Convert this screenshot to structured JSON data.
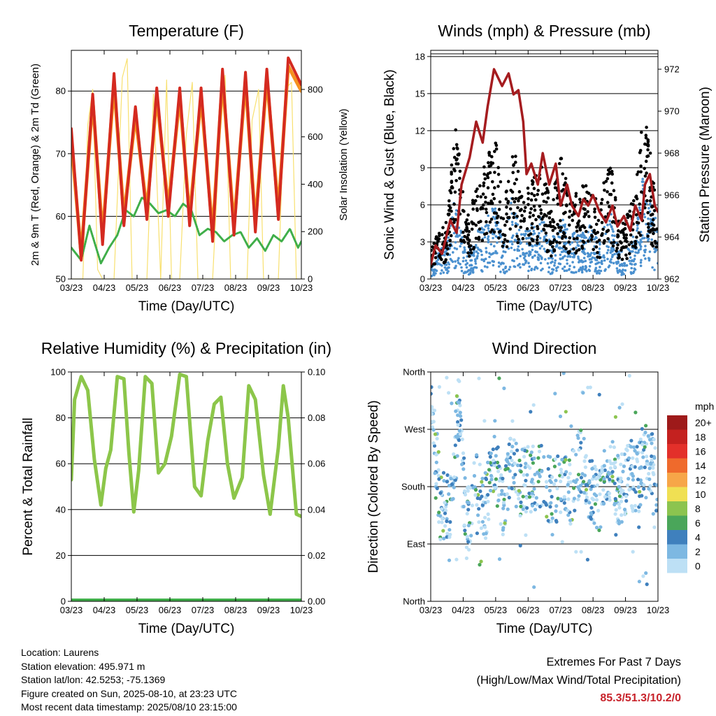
{
  "info": {
    "location": "Location: Laurens",
    "elevation": "Station elevation: 495.971 m",
    "latlon": "Station lat/lon: 42.5253; -75.1369",
    "created": "Figure created on Sun, 2025-08-10, at 23:23 UTC",
    "recent": "Most recent data timestamp: 2025/08/10 23:15:00"
  },
  "extremes": {
    "title": "Extremes For Past 7 Days",
    "subtitle": "(High/Low/Max Wind/Total Precipitation)",
    "values": "85.3/51.3/10.2/0"
  },
  "colors": {
    "temp_2m": "#d42a20",
    "temp_9m": "#f5911f",
    "dewpoint": "#3fae49",
    "solar": "#f8e06f",
    "gust": "#000000",
    "wind": "#4a90cf",
    "pressure": "#a51c1f",
    "rh": "#8cc64a",
    "precip": "#3fae49"
  },
  "chart_data": [
    {
      "id": "temperature",
      "type": "line",
      "title": "Temperature (F)",
      "xlabel": "Time (Day/UTC)",
      "ylabel": "2m & 9m T (Red, Orange) & 2m Td (Green)",
      "ylabel_right": "Solar Insolation (Yellow)",
      "xticks": [
        "03/23",
        "04/23",
        "05/23",
        "06/23",
        "07/23",
        "08/23",
        "09/23",
        "10/23"
      ],
      "xlim": [
        0,
        7
      ],
      "ylim": [
        50,
        86.5
      ],
      "yticks": [
        50,
        60,
        70,
        80
      ],
      "ylim_right": [
        0,
        965
      ],
      "yticks_right": [
        0,
        200,
        400,
        600,
        800
      ],
      "grid": true,
      "series": [
        {
          "key": "temp_2m",
          "x": [
            0.0,
            0.3,
            0.65,
            0.95,
            1.3,
            1.6,
            1.95,
            2.3,
            2.6,
            2.95,
            3.3,
            3.6,
            3.95,
            4.3,
            4.6,
            4.95,
            5.3,
            5.6,
            5.95,
            6.3,
            6.6,
            6.95,
            7.0
          ],
          "values": [
            74,
            53,
            79.5,
            55.5,
            82.8,
            58.5,
            77.5,
            59.5,
            80.5,
            60,
            80.5,
            58.5,
            80.5,
            56,
            83.5,
            57,
            83,
            57.5,
            83.5,
            59.5,
            85.3,
            81.5,
            81
          ]
        },
        {
          "key": "temp_9m",
          "x": [
            0.0,
            0.3,
            0.65,
            0.95,
            1.3,
            1.6,
            1.95,
            2.3,
            2.6,
            2.95,
            3.3,
            3.6,
            3.95,
            4.3,
            4.6,
            4.95,
            5.3,
            5.6,
            5.95,
            6.3,
            6.6,
            6.95,
            7.0
          ],
          "values": [
            72,
            54,
            78.5,
            57,
            81,
            60,
            76,
            61,
            79,
            61.5,
            79,
            60,
            79,
            57.5,
            82,
            58.5,
            81.5,
            59,
            82,
            61,
            84,
            80.5,
            80
          ]
        },
        {
          "key": "dewpoint",
          "x": [
            0.0,
            0.3,
            0.55,
            0.9,
            1.15,
            1.4,
            1.65,
            1.9,
            2.15,
            2.4,
            2.65,
            2.9,
            3.15,
            3.4,
            3.65,
            3.9,
            4.15,
            4.4,
            4.65,
            4.9,
            5.15,
            5.4,
            5.65,
            5.9,
            6.15,
            6.4,
            6.65,
            6.9,
            7.0
          ],
          "values": [
            55,
            53,
            58.5,
            52.5,
            55,
            57,
            61,
            60,
            63,
            62,
            60.5,
            61,
            60,
            62,
            61,
            57,
            58,
            57.5,
            56,
            57,
            57.5,
            55,
            56.5,
            54.5,
            57,
            56,
            58,
            55,
            56
          ]
        },
        {
          "key": "solar",
          "x": [
            0.0,
            0.35,
            0.5,
            0.65,
            0.8,
            0.95,
            1.3,
            1.55,
            1.7,
            1.85,
            2.0,
            2.3,
            2.5,
            2.72,
            2.9,
            3.05,
            3.3,
            3.5,
            3.68,
            3.85,
            4.0,
            4.3,
            4.5,
            4.68,
            4.85,
            5.0,
            5.35,
            5.5,
            5.7,
            5.85,
            6.0,
            6.3,
            6.5,
            6.7,
            6.85,
            7.0
          ],
          "values": [
            0,
            0,
            650,
            800,
            40,
            0,
            0,
            850,
            930,
            0,
            0,
            0,
            780,
            0,
            840,
            0,
            0,
            610,
            830,
            0,
            0,
            0,
            560,
            860,
            0,
            0,
            0,
            670,
            800,
            0,
            0,
            0,
            800,
            830,
            0,
            0
          ]
        }
      ]
    },
    {
      "id": "winds",
      "type": "scatter",
      "title": "Winds (mph) & Pressure (mb)",
      "xlabel": "Time (Day/UTC)",
      "ylabel": "Sonic Wind & Gust (Blue, Black)",
      "ylabel_right": "Station Pressure (Maroon)",
      "xticks": [
        "03/23",
        "04/23",
        "05/23",
        "06/23",
        "07/23",
        "08/23",
        "09/23",
        "10/23"
      ],
      "xlim": [
        0,
        7
      ],
      "ylim": [
        0,
        18.5
      ],
      "yticks": [
        0,
        3,
        6,
        9,
        12,
        15,
        18
      ],
      "ylim_right": [
        962,
        972.9
      ],
      "yticks_right": [
        962,
        964,
        966,
        968,
        970,
        972
      ],
      "grid": true,
      "series": [
        {
          "key": "gust",
          "x": [
            0.0,
            0.5,
            0.75,
            1.1,
            1.4,
            1.75,
            2.0,
            2.25,
            2.5,
            2.8,
            3.1,
            3.4,
            3.7,
            4.0,
            4.3,
            4.6,
            4.9,
            5.2,
            5.5,
            5.8,
            6.0,
            6.3,
            6.55,
            6.8,
            7.0
          ],
          "values": [
            2.5,
            4,
            11,
            4,
            6,
            8.5,
            9.5,
            5,
            10,
            6,
            6.5,
            8,
            5,
            8.5,
            5.5,
            6,
            7,
            4.5,
            9,
            4,
            4,
            6,
            12,
            8,
            6
          ]
        },
        {
          "key": "wind",
          "x": [
            0.0,
            0.5,
            0.75,
            1.1,
            1.4,
            1.75,
            2.0,
            2.25,
            2.5,
            2.8,
            3.1,
            3.4,
            3.7,
            4.0,
            4.3,
            4.6,
            4.9,
            5.2,
            5.5,
            5.8,
            6.0,
            6.3,
            6.55,
            6.8,
            7.0
          ],
          "values": [
            1,
            2,
            4.5,
            1.5,
            2.5,
            3.5,
            4,
            2,
            4.5,
            2.5,
            3,
            3.5,
            2,
            3.5,
            2.5,
            2.5,
            3,
            2,
            4,
            1.5,
            1.5,
            2.5,
            6,
            4,
            3
          ]
        },
        {
          "key": "pressure",
          "x": [
            0.0,
            0.15,
            0.35,
            0.6,
            0.8,
            0.95,
            1.2,
            1.4,
            1.6,
            1.75,
            1.95,
            2.2,
            2.4,
            2.55,
            2.7,
            2.85,
            2.95,
            3.1,
            3.3,
            3.45,
            3.65,
            3.85,
            4.0,
            4.2,
            4.35,
            4.55,
            4.7,
            4.85,
            5.0,
            5.2,
            5.4,
            5.6,
            5.75,
            5.95,
            6.15,
            6.3,
            6.5,
            6.6,
            6.75,
            6.9,
            7.0
          ],
          "values": [
            962.7,
            963.6,
            963.2,
            964.8,
            964.2,
            966.5,
            967.8,
            969.5,
            968.5,
            970.2,
            972.0,
            971.2,
            971.8,
            970.8,
            971.0,
            969.5,
            967.0,
            967.5,
            966.5,
            968.0,
            966.5,
            967.5,
            965.5,
            966.5,
            965.5,
            965.0,
            965.8,
            965.5,
            966.0,
            965.2,
            964.7,
            965.5,
            964.5,
            965.0,
            964.3,
            965.5,
            964.8,
            966.5,
            967.0,
            965.5,
            965.2
          ]
        }
      ]
    },
    {
      "id": "humidity",
      "type": "line",
      "title": "Relative Humidity (%) & Precipitation (in)",
      "xlabel": "Time (Day/UTC)",
      "ylabel": "Percent & Total Rainfall",
      "xticks": [
        "03/23",
        "04/23",
        "05/23",
        "06/23",
        "07/23",
        "08/23",
        "09/23",
        "10/23"
      ],
      "xlim": [
        0,
        7
      ],
      "ylim": [
        0,
        100
      ],
      "yticks": [
        0,
        20,
        40,
        60,
        80,
        100
      ],
      "ylim_right": [
        0,
        0.1
      ],
      "yticks_right": [
        "0.00",
        "0.02",
        "0.04",
        "0.06",
        "0.08",
        "0.10"
      ],
      "grid": true,
      "series": [
        {
          "key": "rh",
          "x": [
            0.0,
            0.1,
            0.3,
            0.5,
            0.7,
            0.9,
            1.05,
            1.2,
            1.4,
            1.6,
            1.75,
            1.9,
            2.05,
            2.25,
            2.45,
            2.65,
            2.85,
            3.05,
            3.3,
            3.5,
            3.75,
            3.95,
            4.15,
            4.35,
            4.55,
            4.75,
            4.95,
            5.2,
            5.4,
            5.6,
            5.85,
            6.05,
            6.3,
            6.45,
            6.6,
            6.85,
            7.0
          ],
          "values": [
            53,
            88,
            98,
            92,
            62,
            42,
            58,
            66,
            98,
            97,
            65,
            39,
            57,
            98,
            95,
            56,
            60,
            72,
            99,
            98,
            50,
            46,
            70,
            86,
            89,
            60,
            45,
            54,
            94,
            88,
            55,
            38,
            67,
            94,
            80,
            38,
            37
          ]
        },
        {
          "key": "precip",
          "x": [
            0,
            7
          ],
          "values": [
            0,
            0
          ]
        }
      ]
    },
    {
      "id": "direction",
      "type": "scatter",
      "title": "Wind Direction",
      "xlabel": "Time (Day/UTC)",
      "ylabel": "Direction (Colored By Speed)",
      "xticks": [
        "03/23",
        "04/23",
        "05/23",
        "06/23",
        "07/23",
        "08/23",
        "09/23",
        "10/23"
      ],
      "xlim": [
        0,
        7
      ],
      "ylim": [
        0,
        360
      ],
      "yticks": [
        0,
        90,
        180,
        270,
        360
      ],
      "yticklabels": [
        "North",
        "East",
        "South",
        "West",
        "North"
      ],
      "grid": true,
      "legend": {
        "title": "mph",
        "placement": "right",
        "labels": [
          "0",
          "2",
          "4",
          "6",
          "8",
          "10",
          "12",
          "14",
          "16",
          "18",
          "20+"
        ],
        "colors": [
          "#bde0f5",
          "#7db8e2",
          "#3f80bd",
          "#4aa65a",
          "#8cc44f",
          "#f0e053",
          "#f7a648",
          "#ef6a2c",
          "#e3302a",
          "#c4211f",
          "#9e1a1a"
        ]
      },
      "series": [
        {
          "key": "direction",
          "x": [
            0.0,
            0.3,
            0.6,
            0.85,
            1.1,
            1.4,
            1.7,
            1.95,
            2.2,
            2.5,
            2.8,
            3.1,
            3.4,
            3.7,
            4.0,
            4.3,
            4.6,
            4.9,
            5.2,
            5.5,
            5.8,
            6.1,
            6.4,
            6.65,
            6.9,
            7.0
          ],
          "values": [
            330,
            150,
            145,
            300,
            120,
            180,
            150,
            240,
            160,
            210,
            185,
            195,
            200,
            170,
            180,
            170,
            225,
            180,
            160,
            210,
            170,
            200,
            190,
            230,
            200,
            190
          ]
        }
      ]
    }
  ]
}
